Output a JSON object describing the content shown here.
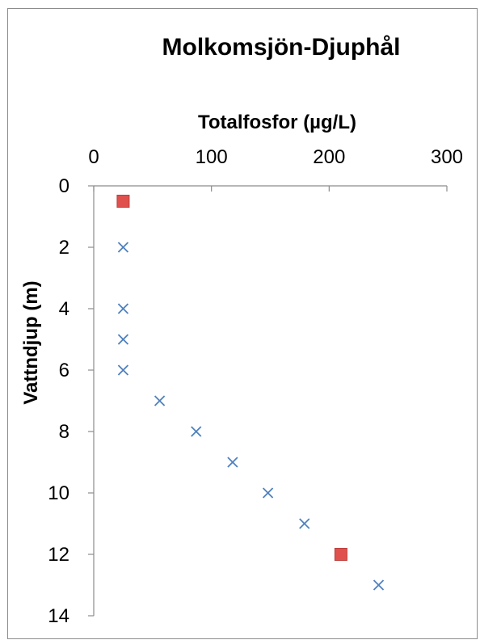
{
  "chart_data": {
    "type": "scatter",
    "title": "Molkomsjön-Djuphål",
    "xlabel": "Totalfosfor (µg/L)",
    "ylabel": "Vattndjup (m)",
    "x_axis_position": "top",
    "y_axis_inverted": true,
    "xlim": [
      0,
      300
    ],
    "ylim": [
      0,
      14
    ],
    "x_ticks": [
      0,
      100,
      200,
      300
    ],
    "y_ticks": [
      0,
      2,
      4,
      6,
      8,
      10,
      12,
      14
    ],
    "grid": false,
    "legend": "none",
    "series": [
      {
        "marker": "x",
        "color": "#4f81bd",
        "points": [
          {
            "x": 25,
            "y": 2
          },
          {
            "x": 25,
            "y": 4
          },
          {
            "x": 25,
            "y": 5
          },
          {
            "x": 25,
            "y": 6
          },
          {
            "x": 56,
            "y": 7
          },
          {
            "x": 87,
            "y": 8
          },
          {
            "x": 118,
            "y": 9
          },
          {
            "x": 148,
            "y": 10
          },
          {
            "x": 179,
            "y": 11
          },
          {
            "x": 242,
            "y": 13
          }
        ]
      },
      {
        "marker": "square",
        "color": "#e0504d",
        "points": [
          {
            "x": 25,
            "y": 0.5
          },
          {
            "x": 210,
            "y": 12
          }
        ]
      }
    ]
  }
}
